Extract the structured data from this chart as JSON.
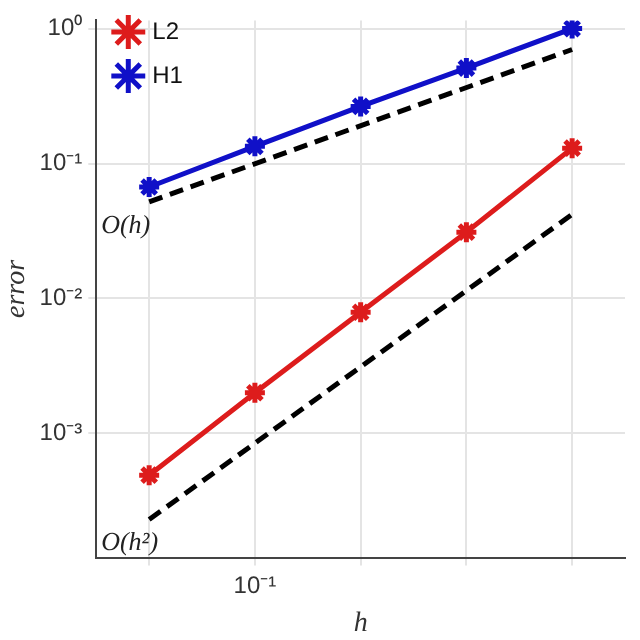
{
  "chart_data": {
    "type": "line",
    "xlabel": "h",
    "ylabel": "error",
    "log": "y",
    "categories": [
      null,
      "10⁻¹",
      null,
      null,
      null
    ],
    "series": [
      {
        "name": "L2",
        "color": "#dd1c1c",
        "values": [
          0.00049,
          0.002,
          0.0079,
          0.031,
          0.13
        ],
        "marker": "cross"
      },
      {
        "name": "H1",
        "color": "#1010c8",
        "values": [
          0.067,
          0.134,
          0.265,
          0.51,
          1.0
        ],
        "marker": "cross"
      },
      {
        "type": "line",
        "color": "#000000",
        "values": [
          0.052,
          null,
          null,
          null,
          0.7
        ],
        "line_style": "dashed",
        "marker": "none"
      },
      {
        "type": "line",
        "color": "#000000",
        "values": [
          0.00023,
          null,
          null,
          null,
          0.042
        ],
        "line_style": "dashed",
        "marker": "none"
      }
    ],
    "ylim": [
      0.00012,
      1.15
    ],
    "yticks": [
      {
        "value": 0.001,
        "label": "10⁻³"
      },
      {
        "value": 0.01,
        "label": "10⁻²"
      },
      {
        "value": 0.1,
        "label": "10⁻¹"
      },
      {
        "value": 1,
        "label": "10⁰"
      }
    ],
    "annotations": [
      "O(h)",
      "O(h²)"
    ],
    "grid": true,
    "legend": "top left"
  }
}
